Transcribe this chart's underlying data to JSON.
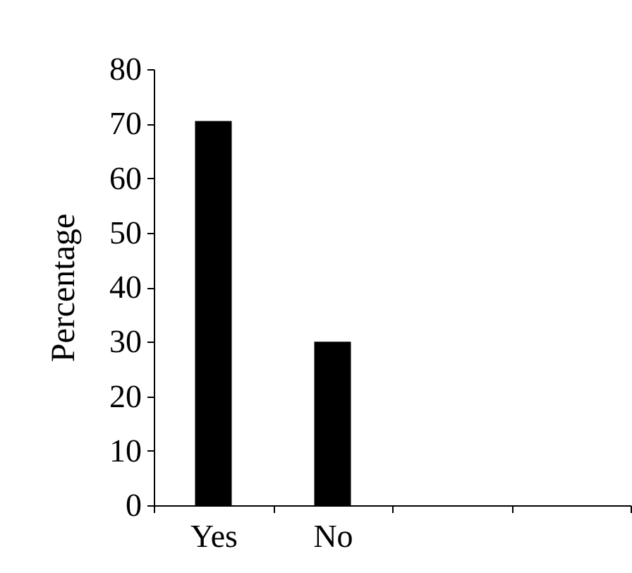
{
  "chart_data": {
    "type": "bar",
    "ylabel": "Percentage",
    "categories": [
      "Yes",
      "No",
      null,
      null
    ],
    "values": [
      70.5,
      30,
      null,
      null
    ],
    "color": "#000000",
    "ylim": [
      0,
      80
    ],
    "yticks": [
      0,
      10,
      20,
      30,
      40,
      50,
      60,
      70,
      80
    ],
    "grid": false
  }
}
